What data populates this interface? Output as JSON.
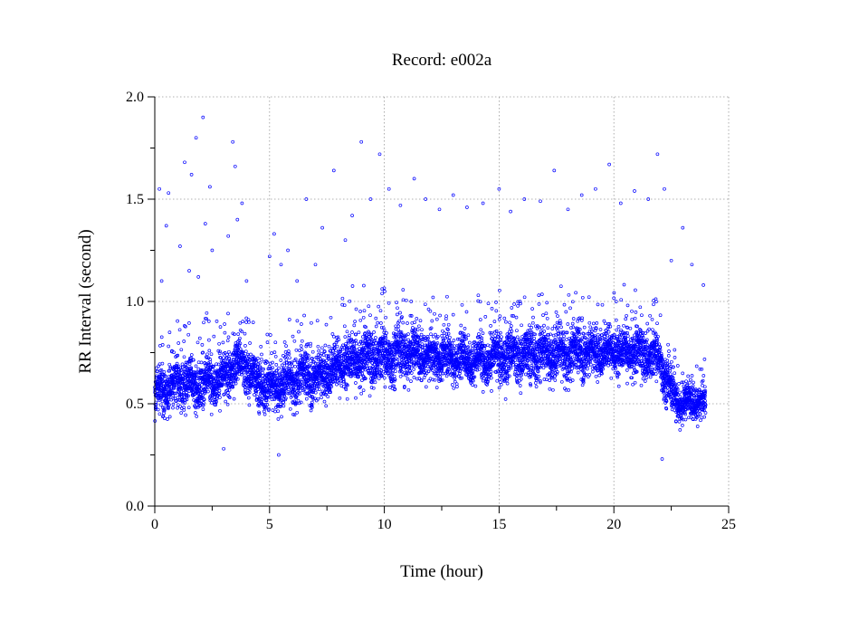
{
  "chart_data": {
    "type": "scatter",
    "title": "Record:  e002a",
    "xlabel": "Time (hour)",
    "ylabel": "RR Interval (second)",
    "xlim": [
      0,
      25
    ],
    "ylim": [
      0.0,
      2.0
    ],
    "xticks": [
      0,
      5,
      10,
      15,
      20,
      25
    ],
    "xtick_labels": [
      "0",
      "5",
      "10",
      "15",
      "20",
      "25"
    ],
    "yticks": [
      0.0,
      0.5,
      1.0,
      1.5,
      2.0
    ],
    "ytick_labels": [
      "0.0",
      "0.5",
      "1.0",
      "1.5",
      "2.0"
    ],
    "grid": true,
    "marker": "open-circle",
    "color": "#0000ff",
    "x_extent": [
      0,
      24
    ],
    "trend": {
      "x": [
        0,
        0.5,
        1,
        1.5,
        2,
        2.5,
        3,
        3.5,
        4,
        4.5,
        5,
        5.5,
        6,
        6.5,
        7,
        7.5,
        8,
        8.5,
        9,
        9.5,
        10,
        10.5,
        11,
        11.5,
        12,
        13,
        14,
        15,
        16,
        17,
        18,
        19,
        20,
        21,
        22,
        22.5,
        23,
        23.5,
        24
      ],
      "y": [
        0.55,
        0.58,
        0.62,
        0.6,
        0.6,
        0.63,
        0.62,
        0.7,
        0.68,
        0.6,
        0.58,
        0.6,
        0.62,
        0.64,
        0.63,
        0.66,
        0.7,
        0.72,
        0.72,
        0.73,
        0.73,
        0.74,
        0.76,
        0.75,
        0.73,
        0.73,
        0.72,
        0.73,
        0.74,
        0.75,
        0.75,
        0.76,
        0.77,
        0.75,
        0.72,
        0.55,
        0.5,
        0.52,
        0.5
      ],
      "spread": [
        0.13,
        0.14,
        0.15,
        0.14,
        0.15,
        0.15,
        0.16,
        0.13,
        0.15,
        0.14,
        0.13,
        0.14,
        0.14,
        0.15,
        0.14,
        0.15,
        0.17,
        0.17,
        0.17,
        0.17,
        0.17,
        0.16,
        0.16,
        0.14,
        0.13,
        0.13,
        0.14,
        0.16,
        0.16,
        0.15,
        0.15,
        0.14,
        0.15,
        0.15,
        0.14,
        0.12,
        0.1,
        0.1,
        0.09
      ]
    },
    "outliers": {
      "x": [
        0.2,
        0.3,
        0.5,
        0.6,
        1.1,
        1.3,
        1.5,
        1.6,
        1.8,
        1.9,
        2.1,
        2.2,
        2.4,
        2.5,
        3.2,
        3.4,
        3.5,
        3.6,
        3.8,
        4.0,
        5.0,
        5.2,
        5.5,
        5.8,
        6.2,
        6.6,
        7.0,
        7.3,
        7.8,
        8.3,
        8.6,
        9.0,
        9.4,
        9.8,
        10.2,
        10.7,
        11.3,
        11.8,
        12.4,
        13.0,
        13.6,
        14.3,
        15.0,
        15.5,
        16.1,
        16.8,
        17.4,
        18.0,
        18.6,
        19.2,
        19.8,
        20.3,
        20.9,
        21.5,
        21.9,
        22.2,
        22.5,
        23.0,
        23.4,
        23.9,
        5.4,
        3.0,
        22.1
      ],
      "y": [
        1.55,
        1.1,
        1.37,
        1.53,
        1.27,
        1.68,
        1.15,
        1.62,
        1.8,
        1.12,
        1.9,
        1.38,
        1.56,
        1.25,
        1.32,
        1.78,
        1.66,
        1.4,
        1.48,
        1.1,
        1.22,
        1.33,
        1.18,
        1.25,
        1.1,
        1.5,
        1.18,
        1.36,
        1.64,
        1.3,
        1.42,
        1.78,
        1.5,
        1.72,
        1.55,
        1.47,
        1.6,
        1.5,
        1.45,
        1.52,
        1.46,
        1.48,
        1.55,
        1.44,
        1.5,
        1.49,
        1.64,
        1.45,
        1.52,
        1.55,
        1.67,
        1.48,
        1.54,
        1.5,
        1.72,
        1.55,
        1.2,
        1.36,
        1.18,
        1.08,
        0.25,
        0.28,
        0.23
      ]
    }
  }
}
